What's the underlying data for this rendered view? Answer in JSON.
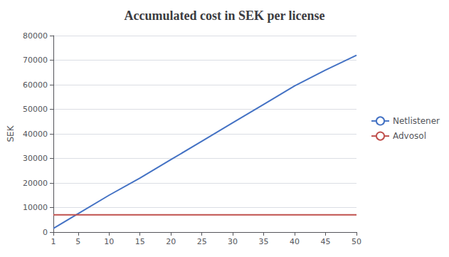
{
  "chart_data": {
    "type": "line",
    "title": "Accumulated cost in SEK per license",
    "ylabel": "SEK",
    "x": [
      1,
      5,
      10,
      15,
      20,
      25,
      30,
      35,
      40,
      45,
      50
    ],
    "series": [
      {
        "name": "Netlistener",
        "color": "#4472C4",
        "values": [
          1500,
          7500,
          15000,
          22000,
          29500,
          37000,
          44500,
          52000,
          59500,
          66000,
          72000
        ]
      },
      {
        "name": "Advosol",
        "color": "#C0504D",
        "values": [
          7000,
          7000,
          7000,
          7000,
          7000,
          7000,
          7000,
          7000,
          7000,
          7000,
          7000
        ]
      }
    ],
    "xlim": [
      1,
      50
    ],
    "ylim": [
      0,
      80000
    ],
    "xticks": [
      1,
      5,
      10,
      15,
      20,
      25,
      30,
      35,
      40,
      45,
      50
    ],
    "yticks": [
      0,
      10000,
      20000,
      30000,
      40000,
      50000,
      60000,
      70000,
      80000
    ],
    "grid": true,
    "legend": "right"
  }
}
